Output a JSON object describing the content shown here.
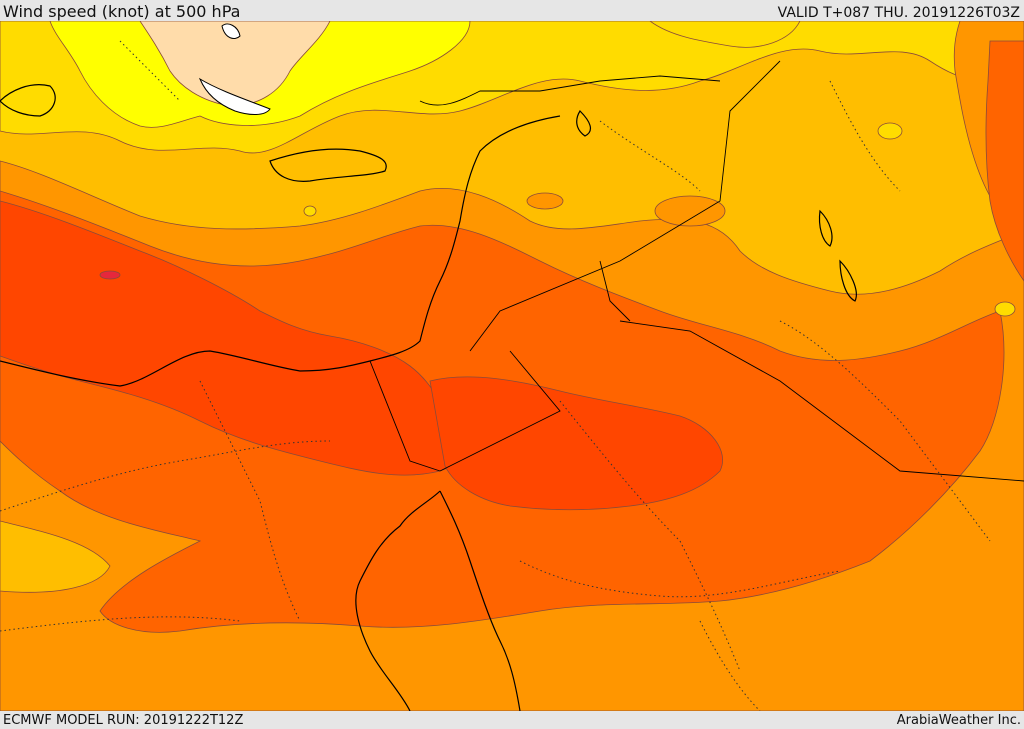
{
  "header": {
    "title": "Wind speed (knot) at 500 hPa",
    "valid": "VALID T+087 THU. 20191226T03Z"
  },
  "footer": {
    "model_run": "ECMWF MODEL RUN: 20191222T12Z",
    "credit": "ArabiaWeather Inc."
  },
  "colors": {
    "band_lightest": "#ffdcaa",
    "band_yellow": "#ffff00",
    "band_gold": "#ffdc00",
    "band_amber": "#ffbe00",
    "band_orange": "#ff9600",
    "band_deep_orange": "#ff6400",
    "band_red_orange": "#ff4600",
    "band_max": "#e6283c",
    "contour_line": "#8a4b3a",
    "boundary_line": "#000000",
    "water": "#ffffff"
  }
}
